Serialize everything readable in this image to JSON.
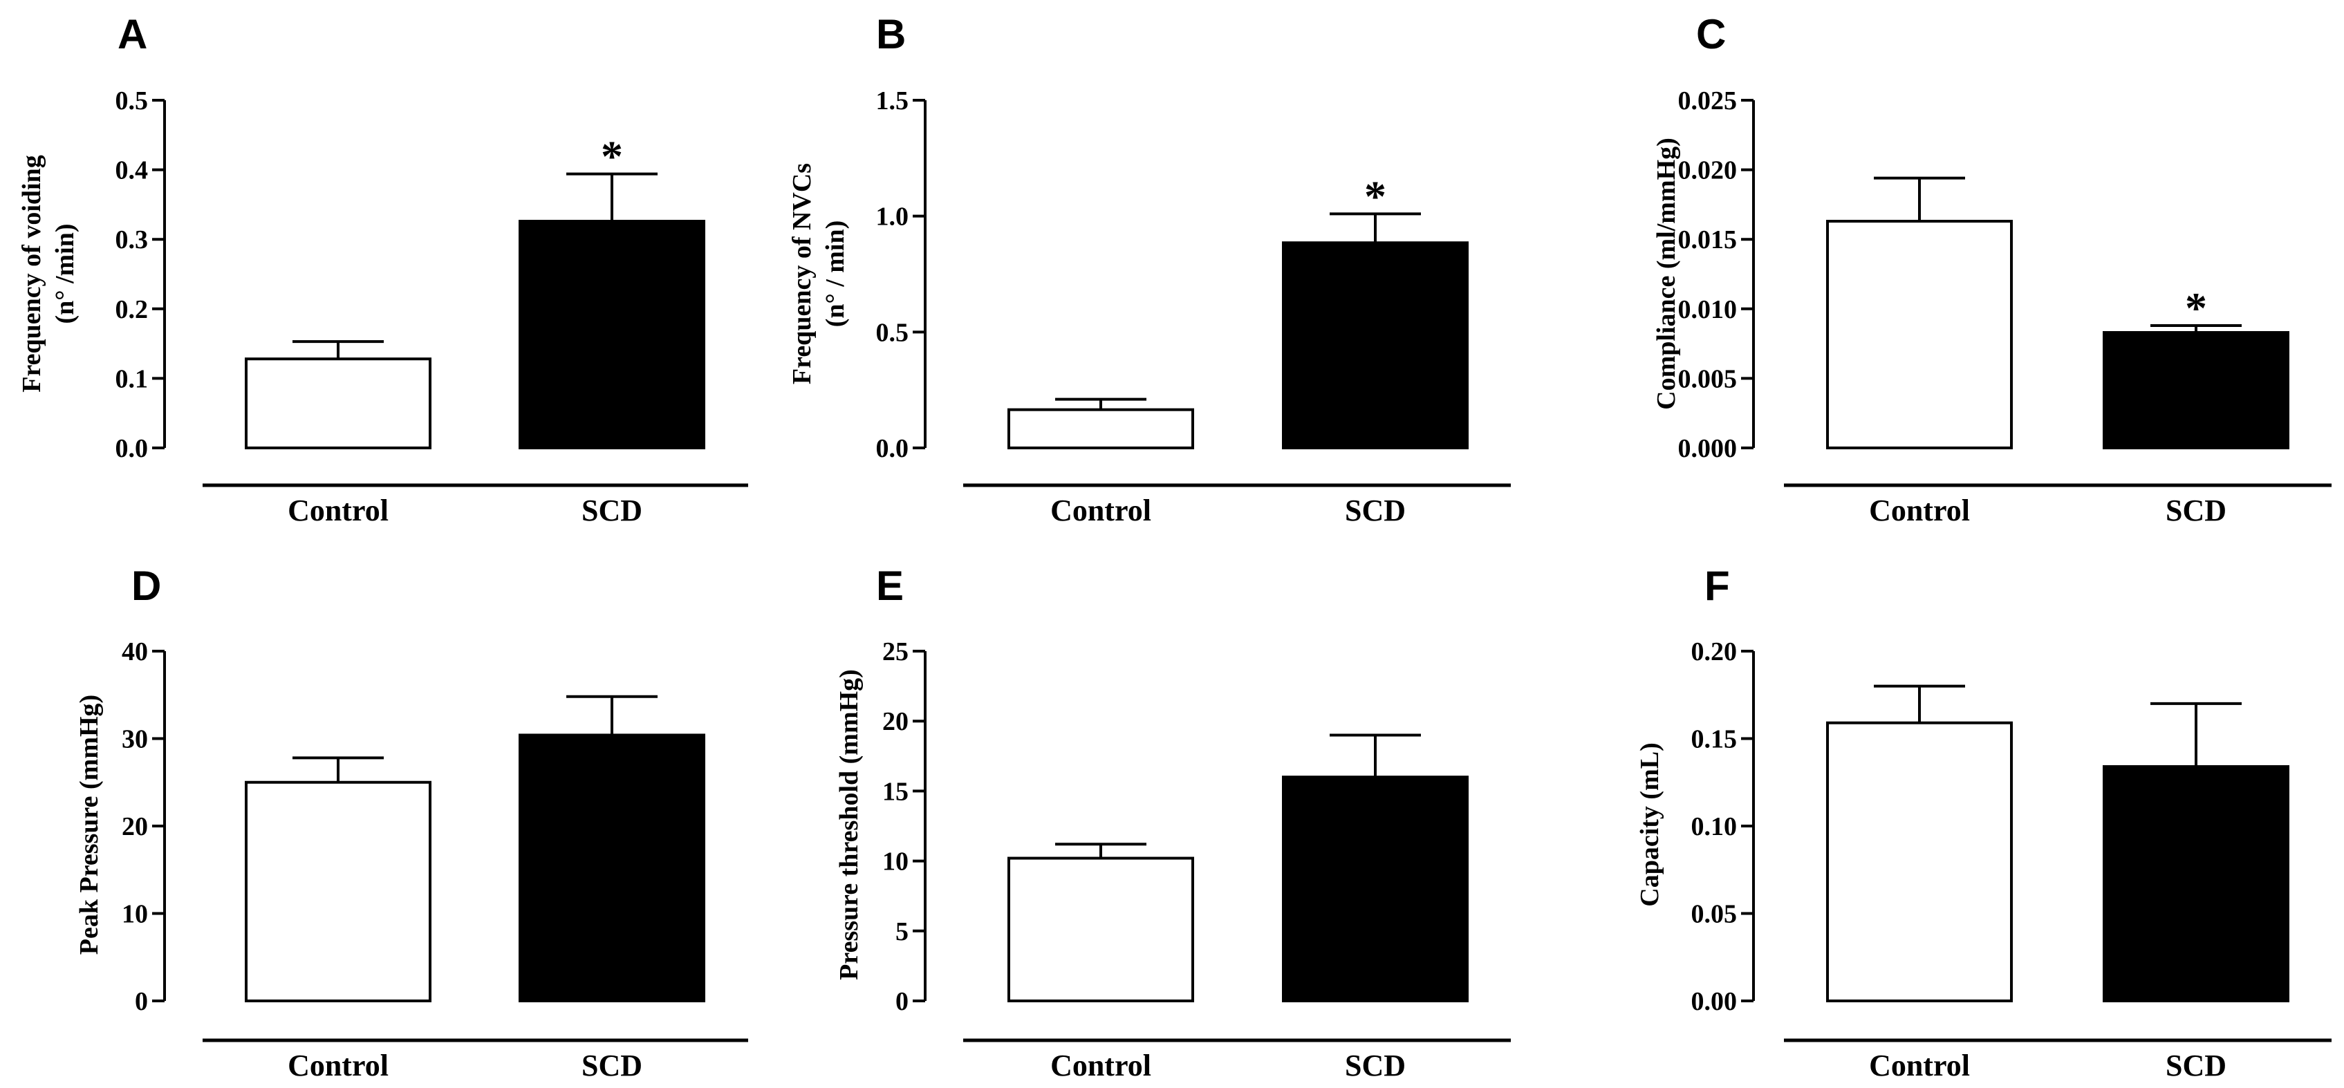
{
  "chart_data": [
    {
      "type": "bar",
      "panel": "A",
      "categories": [
        "Control",
        "SCD"
      ],
      "values": [
        0.128,
        0.326
      ],
      "errors": [
        0.025,
        0.068
      ],
      "colors": [
        "#ffffff",
        "#000000"
      ],
      "significance": [
        "",
        "*"
      ],
      "ylabel": [
        "Frequency of voiding",
        "(n° /min)"
      ],
      "ylim": [
        0,
        0.5
      ],
      "yticks": [
        0.0,
        0.1,
        0.2,
        0.3,
        0.4,
        0.5
      ],
      "ytick_labels": [
        "0.0",
        "0.1",
        "0.2",
        "0.3",
        "0.4",
        "0.5"
      ]
    },
    {
      "type": "bar",
      "panel": "B",
      "categories": [
        "Control",
        "SCD"
      ],
      "values": [
        0.165,
        0.885
      ],
      "errors": [
        0.045,
        0.125
      ],
      "colors": [
        "#ffffff",
        "#000000"
      ],
      "significance": [
        "",
        "*"
      ],
      "ylabel": [
        "Frequency of NVCs",
        "(n° / min)"
      ],
      "ylim": [
        0,
        1.5
      ],
      "yticks": [
        0.0,
        0.5,
        1.0,
        1.5
      ],
      "ytick_labels": [
        "0.0",
        "0.5",
        "1.0",
        "1.5"
      ]
    },
    {
      "type": "bar",
      "panel": "C",
      "categories": [
        "Control",
        "SCD"
      ],
      "values": [
        0.0163,
        0.0083
      ],
      "errors": [
        0.0031,
        0.0005
      ],
      "colors": [
        "#ffffff",
        "#000000"
      ],
      "significance": [
        "",
        "*"
      ],
      "ylabel": [
        "Compliance (ml/mmHg)"
      ],
      "ylim": [
        0,
        0.025
      ],
      "yticks": [
        0.0,
        0.005,
        0.01,
        0.015,
        0.02,
        0.025
      ],
      "ytick_labels": [
        "0.000",
        "0.005",
        "0.010",
        "0.015",
        "0.020",
        "0.025"
      ]
    },
    {
      "type": "bar",
      "panel": "D",
      "categories": [
        "Control",
        "SCD"
      ],
      "values": [
        25.0,
        30.4
      ],
      "errors": [
        2.8,
        4.4
      ],
      "colors": [
        "#ffffff",
        "#000000"
      ],
      "significance": [
        "",
        ""
      ],
      "ylabel": [
        "Peak Pressure  (mmHg)"
      ],
      "ylim": [
        0,
        40
      ],
      "yticks": [
        0,
        10,
        20,
        30,
        40
      ],
      "ytick_labels": [
        "0",
        "10",
        "20",
        "30",
        "40"
      ]
    },
    {
      "type": "bar",
      "panel": "E",
      "categories": [
        "Control",
        "SCD"
      ],
      "values": [
        10.2,
        16.0
      ],
      "errors": [
        1.0,
        3.0
      ],
      "colors": [
        "#ffffff",
        "#000000"
      ],
      "significance": [
        "",
        ""
      ],
      "ylabel": [
        "Pressure threshold (mmHg)"
      ],
      "ylim": [
        0,
        25
      ],
      "yticks": [
        0,
        5,
        10,
        15,
        20,
        25
      ],
      "ytick_labels": [
        "0",
        "5",
        "10",
        "15",
        "20",
        "25"
      ]
    },
    {
      "type": "bar",
      "panel": "F",
      "categories": [
        "Control",
        "SCD"
      ],
      "values": [
        0.159,
        0.134
      ],
      "errors": [
        0.021,
        0.036
      ],
      "colors": [
        "#ffffff",
        "#000000"
      ],
      "significance": [
        "",
        ""
      ],
      "ylabel": [
        "Capacity (mL)"
      ],
      "ylim": [
        0,
        0.2
      ],
      "yticks": [
        0.0,
        0.05,
        0.1,
        0.15,
        0.2
      ],
      "ytick_labels": [
        "0.00",
        "0.05",
        "0.10",
        "0.15",
        "0.20"
      ]
    }
  ]
}
